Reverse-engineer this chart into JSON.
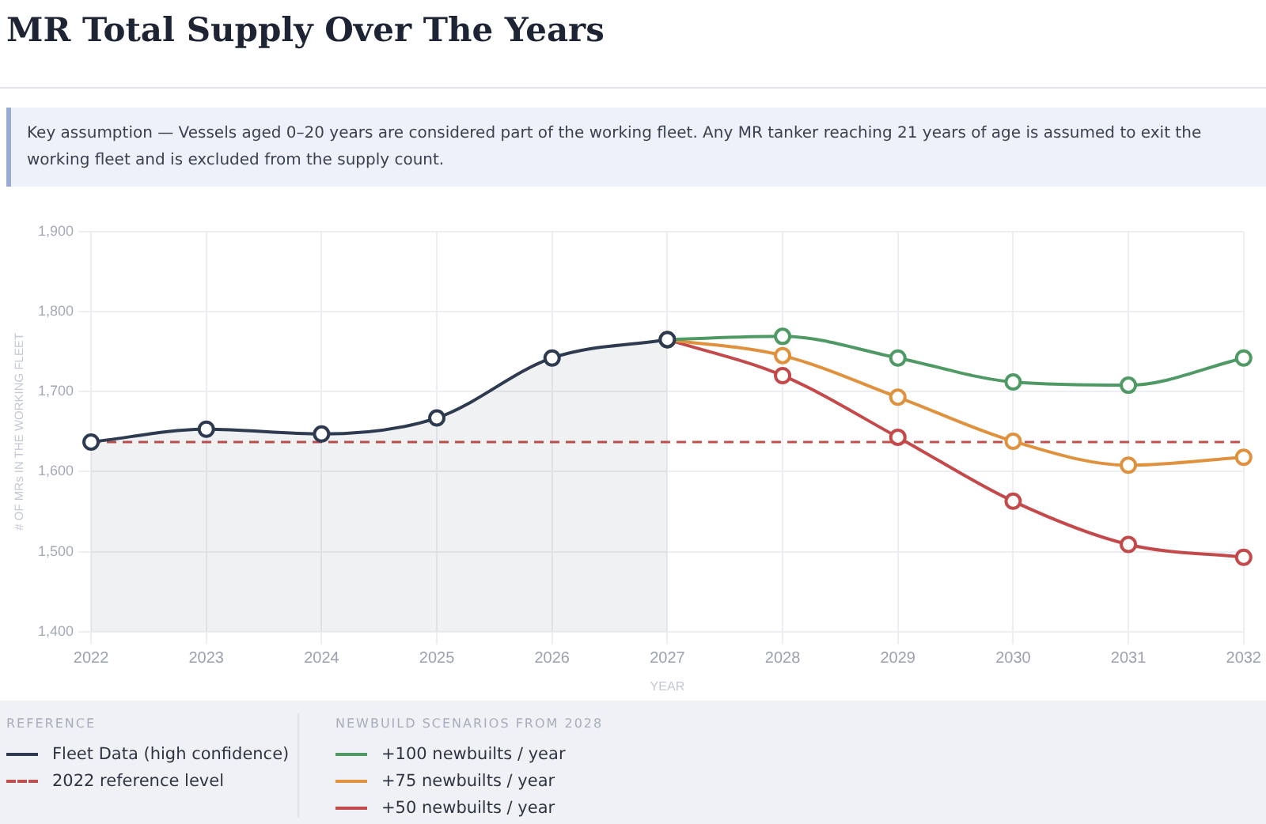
{
  "chart_data": {
    "type": "line",
    "title": "MR Total Supply Over The Years",
    "subtitle": "Key assumption — Vessels aged 0–20 years are considered part of the working fleet. Any MR tanker reaching 21 years of age is assumed to exit the working fleet and is excluded from the supply count.",
    "xlabel": "YEAR",
    "ylabel": "# OF MRs IN THE WORKING FLEET",
    "annotations": [
      "REFERENCE",
      "NEWBUILD SCENARIOS FROM 2028"
    ],
    "categories": [
      "2022",
      "2023",
      "2024",
      "2025",
      "2026",
      "2027",
      "2028",
      "2029",
      "2030",
      "2031",
      "2032"
    ],
    "series": [
      {
        "name": "Fleet Data (high confidence)",
        "type": "area",
        "color": "#2d3a4f",
        "values": [
          1637,
          1653,
          1647,
          1667,
          1742,
          1765,
          null,
          null,
          null,
          null,
          null
        ]
      },
      {
        "name": "+100 newbuilts / year",
        "color": "#4f9a64",
        "values": [
          null,
          null,
          null,
          null,
          null,
          1765,
          1769,
          1742,
          1712,
          1708,
          1742
        ]
      },
      {
        "name": "+75 newbuilts / year",
        "color": "#e0913e",
        "values": [
          null,
          null,
          null,
          null,
          null,
          1765,
          1745,
          1693,
          1638,
          1608,
          1618
        ]
      },
      {
        "name": "+50 newbuilts / year",
        "color": "#c4494a",
        "values": [
          null,
          null,
          null,
          null,
          null,
          1765,
          1720,
          1643,
          1563,
          1509,
          1493
        ]
      }
    ],
    "ref_lines": [
      {
        "axis": "y",
        "value": 1637,
        "label": "2022 reference level",
        "color": "#c0504d",
        "line_style": "dashed"
      }
    ],
    "ylim": [
      1400,
      1900
    ],
    "yticks": [
      {
        "value": 1400,
        "label": "1,400"
      },
      {
        "value": 1500,
        "label": "1,500"
      },
      {
        "value": 1600,
        "label": "1,600"
      },
      {
        "value": 1700,
        "label": "1,700"
      },
      {
        "value": 1800,
        "label": "1,800"
      },
      {
        "value": 1900,
        "label": "1,900"
      }
    ],
    "grid": true,
    "legend": "bottom",
    "marker": "circle",
    "line_style": "solid"
  }
}
